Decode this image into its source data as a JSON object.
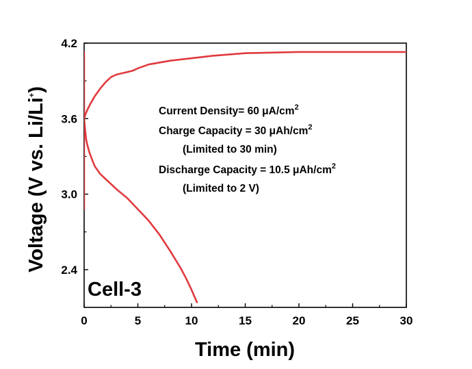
{
  "chart_data": {
    "type": "line",
    "xlabel": "Time (min)",
    "ylabel": {
      "main": "Voltage (V vs. Li/Li",
      "sup": "+",
      "end": ")"
    },
    "xlim": [
      0,
      30
    ],
    "ylim": [
      2.1,
      4.2
    ],
    "x_ticks": [
      0,
      5,
      10,
      15,
      20,
      25,
      30
    ],
    "y_ticks": [
      2.4,
      3.0,
      3.6,
      4.2
    ],
    "y_tick_labels": [
      "2.4",
      "3.0",
      "3.6",
      "4.2"
    ],
    "grid": false,
    "line_color": "#e03a3e",
    "series": [
      {
        "x": [
          0,
          0.1,
          0.3,
          0.6,
          1,
          1.5,
          2,
          2.5,
          3,
          3.5,
          4,
          4.5,
          5,
          6,
          8,
          10,
          12,
          15,
          20,
          25,
          30
        ],
        "y": [
          3.6,
          3.63,
          3.67,
          3.72,
          3.78,
          3.84,
          3.89,
          3.93,
          3.95,
          3.96,
          3.97,
          3.98,
          4.0,
          4.03,
          4.06,
          4.08,
          4.1,
          4.12,
          4.13,
          4.13,
          4.13
        ]
      },
      {
        "x": [
          0,
          0.1,
          0.2,
          0.3,
          0.5,
          0.8,
          1,
          1.5,
          2,
          3,
          4,
          5,
          6,
          7,
          8,
          9,
          9.5,
          10,
          10.5
        ],
        "y": [
          3.6,
          3.5,
          3.43,
          3.39,
          3.33,
          3.26,
          3.22,
          3.16,
          3.12,
          3.04,
          2.97,
          2.88,
          2.79,
          2.68,
          2.55,
          2.41,
          2.33,
          2.24,
          2.14
        ]
      },
      {
        "x": [
          0,
          0,
          0
        ],
        "y": [
          2.88,
          3.6,
          4.13
        ]
      }
    ],
    "annotations": [
      {
        "text": "Current Density= 60 μA/cm",
        "sup": "2"
      },
      {
        "text": "Charge Capacity = 30 μAh/cm",
        "sup": "2"
      },
      {
        "text": "(Limited to 30 min)",
        "sup": ""
      },
      {
        "text": "Discharge Capacity = 10.5 μAh/cm",
        "sup": "2"
      },
      {
        "text": "(Limited to 2 V)",
        "sup": ""
      }
    ],
    "panel_label": "Cell-3"
  }
}
